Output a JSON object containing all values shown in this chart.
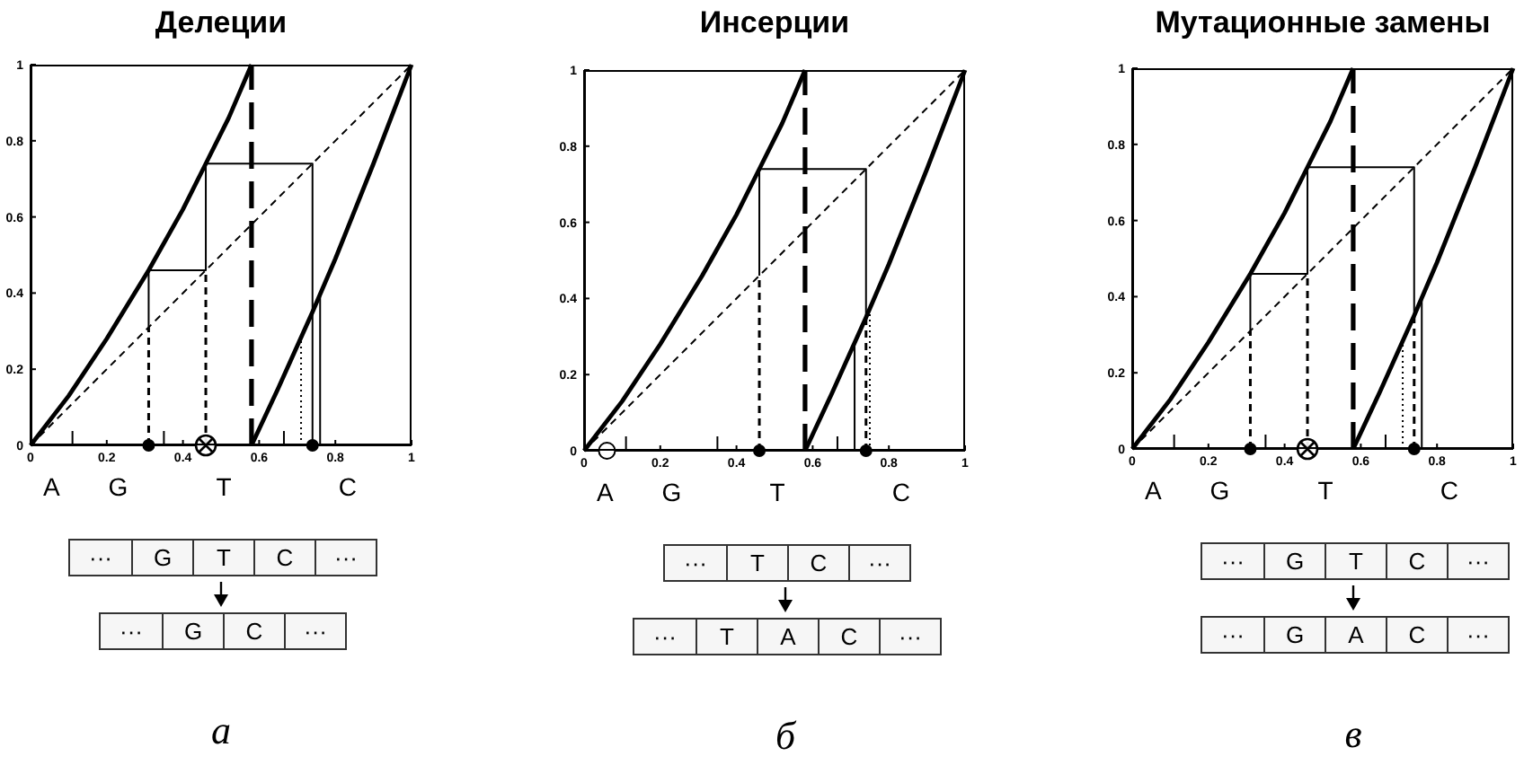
{
  "chart_data": [
    {
      "type": "line",
      "title": "Делеции",
      "xlim": [
        0,
        1
      ],
      "ylim": [
        0,
        1
      ],
      "xticks": [
        0,
        {
          "value": 0.11,
          "label": null
        },
        0.2,
        {
          "value": 0.35,
          "label": null
        },
        0.4,
        0.6,
        {
          "value": 0.665,
          "label": null
        },
        0.8,
        1
      ],
      "yticks": [
        0,
        0.2,
        0.4,
        0.6,
        0.8,
        1
      ],
      "series": [
        {
          "x": [
            0,
            0.1,
            0.2,
            0.31,
            0.4,
            0.46,
            0.52,
            0.58
          ],
          "values": [
            0,
            0.13,
            0.28,
            0.46,
            0.62,
            0.74,
            0.86,
            1
          ],
          "color": "#000000",
          "line_style": "solid"
        },
        {
          "x": [
            0.58,
            0.65,
            0.74,
            0.8,
            0.9,
            1
          ],
          "values": [
            0,
            0.15,
            0.35,
            0.49,
            0.74,
            1
          ],
          "color": "#000000",
          "line_style": "solid"
        },
        {
          "x": [
            0,
            1
          ],
          "values": [
            0,
            1
          ],
          "color": "#000000",
          "line_style": "dashed"
        },
        {
          "x": [
            0.31,
            0.31,
            0.46,
            0.46,
            0.74,
            0.74
          ],
          "values": [
            0.31,
            0.46,
            0.46,
            0.74,
            0.74,
            0
          ],
          "color": "#000000",
          "line_style": "solid"
        },
        {
          "x": [
            0.31,
            0.31
          ],
          "values": [
            0,
            0.31
          ],
          "color": "#000000",
          "line_style": "dashed"
        },
        {
          "x": [
            0.46,
            0.46
          ],
          "values": [
            0,
            0.46
          ],
          "color": "#000000",
          "line_style": "dashed"
        },
        {
          "x": [
            0.71,
            0.71
          ],
          "values": [
            0,
            0.28
          ],
          "color": "#000000",
          "line_style": "dotted"
        },
        {
          "x": [
            0.76,
            0.76
          ],
          "values": [
            0,
            0.4
          ],
          "color": "#000000",
          "line_style": "solid"
        },
        {
          "type": "scatter",
          "x": [
            0.31,
            0.74
          ],
          "values": [
            0,
            0
          ],
          "color": "#000000",
          "marker": "circle"
        },
        {
          "type": "scatter",
          "x": [
            0.46
          ],
          "values": [
            0
          ],
          "color": "#000000",
          "marker": "cross"
        }
      ],
      "ref_lines": [
        {
          "axis": "x",
          "value": 0.58,
          "color": "#000000",
          "line_style": "dashed"
        }
      ],
      "annotations": [
        "A",
        "G",
        "T",
        "C",
        "··· G T C ···",
        "··· G C ···",
        "а"
      ]
    },
    {
      "type": "line",
      "title": "Инсерции",
      "xlim": [
        0,
        1
      ],
      "ylim": [
        0,
        1
      ],
      "xticks": [
        0,
        {
          "value": 0.11,
          "label": null
        },
        0.2,
        {
          "value": 0.35,
          "label": null
        },
        0.4,
        0.6,
        {
          "value": 0.665,
          "label": null
        },
        0.8,
        1
      ],
      "yticks": [
        0,
        0.2,
        0.4,
        0.6,
        0.8,
        1
      ],
      "series": [
        {
          "x": [
            0,
            0.1,
            0.2,
            0.31,
            0.4,
            0.46,
            0.52,
            0.58
          ],
          "values": [
            0,
            0.13,
            0.28,
            0.46,
            0.62,
            0.74,
            0.86,
            1
          ],
          "color": "#000000",
          "line_style": "solid"
        },
        {
          "x": [
            0.58,
            0.65,
            0.74,
            0.8,
            0.9,
            1
          ],
          "values": [
            0,
            0.15,
            0.35,
            0.49,
            0.74,
            1
          ],
          "color": "#000000",
          "line_style": "solid"
        },
        {
          "x": [
            0,
            1
          ],
          "values": [
            0,
            1
          ],
          "color": "#000000",
          "line_style": "dashed"
        },
        {
          "x": [
            0.46,
            0.46,
            0.74,
            0.74
          ],
          "values": [
            0.46,
            0.74,
            0.74,
            0.35
          ],
          "color": "#000000",
          "line_style": "solid"
        },
        {
          "x": [
            0.46,
            0.46
          ],
          "values": [
            0,
            0.46
          ],
          "color": "#000000",
          "line_style": "dashed"
        },
        {
          "x": [
            0.74,
            0.74
          ],
          "values": [
            0,
            0.35
          ],
          "color": "#000000",
          "line_style": "dashed"
        },
        {
          "x": [
            0.71,
            0.71
          ],
          "values": [
            0,
            0.28
          ],
          "color": "#000000",
          "line_style": "solid"
        },
        {
          "x": [
            0.75,
            0.75
          ],
          "values": [
            0,
            0.37
          ],
          "color": "#000000",
          "line_style": "dotted"
        },
        {
          "type": "scatter",
          "x": [
            0.46,
            0.74
          ],
          "values": [
            0,
            0
          ],
          "color": "#000000",
          "marker": "circle"
        },
        {
          "type": "scatter",
          "x": [
            0.06
          ],
          "values": [
            0
          ],
          "color": "#ffffff",
          "marker": "circle"
        }
      ],
      "ref_lines": [
        {
          "axis": "x",
          "value": 0.58,
          "color": "#000000",
          "line_style": "dashed"
        }
      ],
      "annotations": [
        "A",
        "G",
        "T",
        "C",
        "··· T C ···",
        "··· T A C ···",
        "б"
      ]
    },
    {
      "type": "line",
      "title": "Мутационные замены",
      "xlim": [
        0,
        1
      ],
      "ylim": [
        0,
        1
      ],
      "xticks": [
        0,
        {
          "value": 0.11,
          "label": null
        },
        0.2,
        {
          "value": 0.35,
          "label": null
        },
        0.4,
        0.6,
        {
          "value": 0.665,
          "label": null
        },
        0.8,
        1
      ],
      "yticks": [
        0,
        0.2,
        0.4,
        0.6,
        0.8,
        1
      ],
      "series": [
        {
          "x": [
            0,
            0.1,
            0.2,
            0.31,
            0.4,
            0.46,
            0.52,
            0.58
          ],
          "values": [
            0,
            0.13,
            0.28,
            0.46,
            0.62,
            0.74,
            0.86,
            1
          ],
          "color": "#000000",
          "line_style": "solid"
        },
        {
          "x": [
            0.58,
            0.65,
            0.74,
            0.8,
            0.9,
            1
          ],
          "values": [
            0,
            0.15,
            0.35,
            0.49,
            0.74,
            1
          ],
          "color": "#000000",
          "line_style": "solid"
        },
        {
          "x": [
            0,
            1
          ],
          "values": [
            0,
            1
          ],
          "color": "#000000",
          "line_style": "dashed"
        },
        {
          "x": [
            0.31,
            0.31,
            0.46,
            0.46,
            0.74,
            0.74
          ],
          "values": [
            0.31,
            0.46,
            0.46,
            0.74,
            0.74,
            0.35
          ],
          "color": "#000000",
          "line_style": "solid"
        },
        {
          "x": [
            0.31,
            0.31
          ],
          "values": [
            0,
            0.31
          ],
          "color": "#000000",
          "line_style": "dashed"
        },
        {
          "x": [
            0.46,
            0.46
          ],
          "values": [
            0,
            0.46
          ],
          "color": "#000000",
          "line_style": "dashed"
        },
        {
          "x": [
            0.74,
            0.74
          ],
          "values": [
            0,
            0.35
          ],
          "color": "#000000",
          "line_style": "dashed"
        },
        {
          "x": [
            0.71,
            0.71
          ],
          "values": [
            0,
            0.28
          ],
          "color": "#000000",
          "line_style": "dotted"
        },
        {
          "x": [
            0.76,
            0.76
          ],
          "values": [
            0,
            0.4
          ],
          "color": "#000000",
          "line_style": "solid"
        },
        {
          "type": "scatter",
          "x": [
            0.31,
            0.74
          ],
          "values": [
            0,
            0
          ],
          "color": "#000000",
          "marker": "circle"
        },
        {
          "type": "scatter",
          "x": [
            0.46
          ],
          "values": [
            0
          ],
          "color": "#000000",
          "marker": "cross"
        }
      ],
      "ref_lines": [
        {
          "axis": "x",
          "value": 0.58,
          "color": "#000000",
          "line_style": "dashed"
        }
      ],
      "annotations": [
        "A",
        "G",
        "T",
        "C",
        "··· G T C ···",
        "··· G A C ···",
        "в"
      ]
    }
  ]
}
